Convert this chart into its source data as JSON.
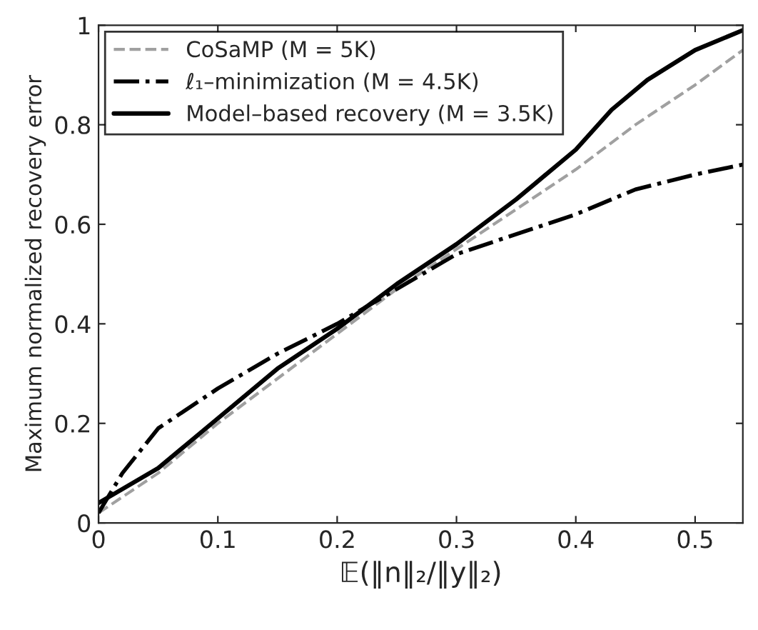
{
  "chart_data": {
    "type": "line",
    "xlabel": "𝔼(‖n‖₂/‖y‖₂)",
    "ylabel": "Maximum normalized recovery error",
    "xlim": [
      0,
      0.54
    ],
    "ylim": [
      0,
      1
    ],
    "xticks": [
      0,
      0.1,
      0.2,
      0.3,
      0.4,
      0.5
    ],
    "yticks": [
      0,
      0.2,
      0.4,
      0.6,
      0.8,
      1
    ],
    "grid": false,
    "legend": "top left",
    "series": [
      {
        "name": "CoSaMP (M = 5K)",
        "color": "#a0a0a0",
        "line_style": "dashed",
        "x": [
          0,
          0.05,
          0.1,
          0.15,
          0.2,
          0.25,
          0.3,
          0.35,
          0.4,
          0.45,
          0.5,
          0.54
        ],
        "values": [
          0.02,
          0.1,
          0.2,
          0.29,
          0.38,
          0.47,
          0.55,
          0.63,
          0.71,
          0.8,
          0.88,
          0.95
        ]
      },
      {
        "name": "ℓ₁–minimization (M = 4.5K)",
        "color": "#000000",
        "line_style": "dashdot",
        "x": [
          0,
          0.02,
          0.05,
          0.1,
          0.15,
          0.2,
          0.25,
          0.3,
          0.35,
          0.4,
          0.45,
          0.5,
          0.54
        ],
        "values": [
          0.02,
          0.1,
          0.19,
          0.27,
          0.34,
          0.4,
          0.47,
          0.54,
          0.58,
          0.62,
          0.67,
          0.7,
          0.72
        ]
      },
      {
        "name": "Model–based recovery (M = 3.5K)",
        "color": "#000000",
        "line_style": "solid",
        "x": [
          0,
          0.05,
          0.1,
          0.15,
          0.2,
          0.25,
          0.3,
          0.35,
          0.4,
          0.43,
          0.46,
          0.5,
          0.54
        ],
        "values": [
          0.04,
          0.11,
          0.21,
          0.31,
          0.39,
          0.48,
          0.56,
          0.65,
          0.75,
          0.83,
          0.89,
          0.95,
          0.99
        ]
      }
    ]
  }
}
